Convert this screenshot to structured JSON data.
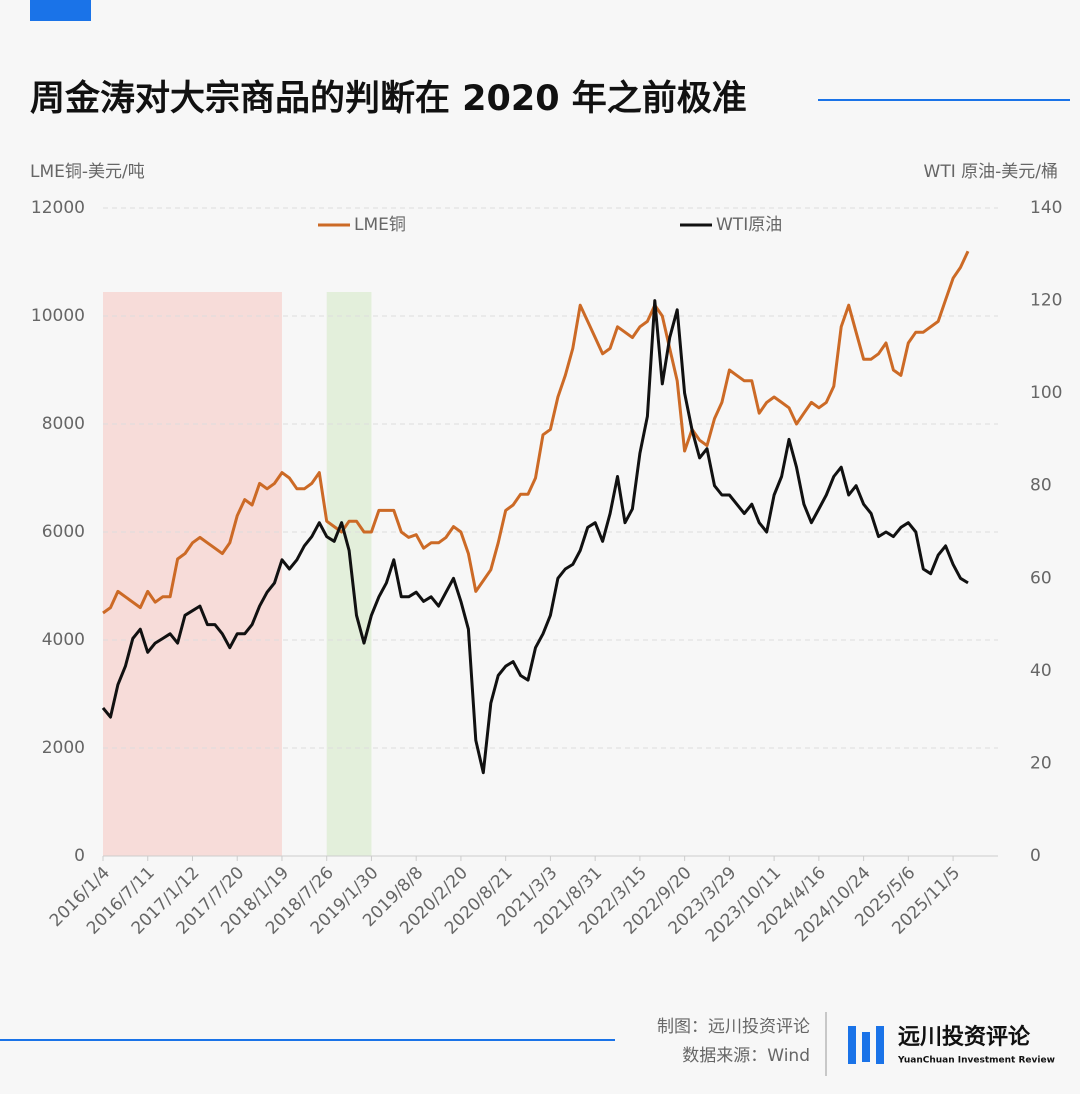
{
  "chart_data": {
    "type": "line",
    "title": "周金涛对大宗商品的判断在 2020 年之前极准",
    "y_label": "LME铜-美元/吨",
    "y2_label": "WTI 原油-美元/桶",
    "categories": [
      "2016/1/4",
      null,
      null,
      null,
      null,
      null,
      "2016/7/11",
      null,
      null,
      null,
      null,
      null,
      "2017/1/12",
      null,
      null,
      null,
      null,
      null,
      "2017/7/20",
      null,
      null,
      null,
      null,
      null,
      "2018/1/19",
      null,
      null,
      null,
      null,
      null,
      "2018/7/26",
      null,
      null,
      null,
      null,
      null,
      "2019/1/30",
      null,
      null,
      null,
      null,
      null,
      "2019/8/8",
      null,
      null,
      null,
      null,
      null,
      "2020/2/20",
      null,
      null,
      null,
      null,
      null,
      "2020/8/21",
      null,
      null,
      null,
      null,
      null,
      "2021/3/3",
      null,
      null,
      null,
      null,
      null,
      "2021/8/31",
      null,
      null,
      null,
      null,
      null,
      "2022/3/15",
      null,
      null,
      null,
      null,
      null,
      "2022/9/20",
      null,
      null,
      null,
      null,
      null,
      "2023/3/29",
      null,
      null,
      null,
      null,
      null,
      "2023/10/11",
      null,
      null,
      null,
      null,
      null,
      "2024/4/16",
      null,
      null,
      null,
      null,
      null,
      "2024/10/24",
      null,
      null,
      null,
      null,
      null,
      "2025/5/6",
      null,
      null,
      null,
      null,
      null,
      "2025/11/5",
      null,
      null
    ],
    "series": [
      {
        "name": "LME铜",
        "color": "#cc6a26",
        "values": [
          4500,
          4600,
          4900,
          4800,
          4700,
          4600,
          4900,
          4700,
          4800,
          4800,
          5500,
          5600,
          5800,
          5900,
          5800,
          5700,
          5600,
          5800,
          6300,
          6600,
          6500,
          6900,
          6800,
          6900,
          7100,
          7000,
          6800,
          6800,
          6900,
          7100,
          6200,
          6100,
          6000,
          6200,
          6200,
          6000,
          6000,
          6400,
          6400,
          6400,
          6000,
          5900,
          5950,
          5700,
          5800,
          5800,
          5900,
          6100,
          6000,
          5600,
          4900,
          5100,
          5300,
          5800,
          6400,
          6500,
          6700,
          6700,
          7000,
          7800,
          7900,
          8500,
          8900,
          9400,
          10200,
          9900,
          9600,
          9300,
          9400,
          9800,
          9700,
          9600,
          9800,
          9900,
          10200,
          10000,
          9400,
          8800,
          7500,
          7900,
          7700,
          7600,
          8100,
          8400,
          9000,
          8900,
          8800,
          8800,
          8200,
          8400,
          8500,
          8400,
          8300,
          8000,
          8200,
          8400,
          8300,
          8400,
          8700,
          9800,
          10200,
          9700,
          9200,
          9200,
          9300,
          9500,
          9000,
          8900,
          9500,
          9700,
          9700,
          9800,
          9900,
          10300,
          10700,
          10900,
          11200
        ]
      },
      {
        "name": "WTI原油",
        "color": "#111111",
        "axis": "y2",
        "values": [
          32,
          30,
          37,
          41,
          47,
          49,
          44,
          46,
          47,
          48,
          46,
          52,
          53,
          54,
          50,
          50,
          48,
          45,
          48,
          48,
          50,
          54,
          57,
          59,
          64,
          62,
          64,
          67,
          69,
          72,
          69,
          68,
          72,
          66,
          52,
          46,
          52,
          56,
          59,
          64,
          56,
          56,
          57,
          55,
          56,
          54,
          57,
          60,
          55,
          49,
          25,
          18,
          33,
          39,
          41,
          42,
          39,
          38,
          45,
          48,
          52,
          60,
          62,
          63,
          66,
          71,
          72,
          68,
          74,
          82,
          72,
          75,
          87,
          95,
          120,
          102,
          112,
          118,
          100,
          92,
          86,
          88,
          80,
          78,
          78,
          76,
          74,
          76,
          72,
          70,
          78,
          82,
          90,
          84,
          76,
          72,
          75,
          78,
          82,
          84,
          78,
          80,
          76,
          74,
          69,
          70,
          69,
          71,
          72,
          70,
          62,
          61,
          65,
          67,
          63,
          60,
          59
        ]
      }
    ],
    "ylim": [
      0,
      12000
    ],
    "yticks": [
      0,
      2000,
      4000,
      6000,
      8000,
      10000,
      12000
    ],
    "y2lim": [
      0,
      140
    ],
    "y2ticks": [
      0,
      20,
      40,
      60,
      80,
      100,
      120,
      140
    ],
    "grid": true,
    "highlights": [
      {
        "start": "2016/1/4",
        "end": "2018/1/19",
        "color": "#f7dcd9"
      },
      {
        "start": "2018/7/26",
        "end": "2019/1/30",
        "color": "#e3efdb"
      }
    ]
  },
  "footer": {
    "credit": "制图：远川投资评论",
    "source": "数据来源：Wind"
  },
  "logo": {
    "name": "远川投资评论",
    "tagline": "YuanChuan Investment Review"
  }
}
